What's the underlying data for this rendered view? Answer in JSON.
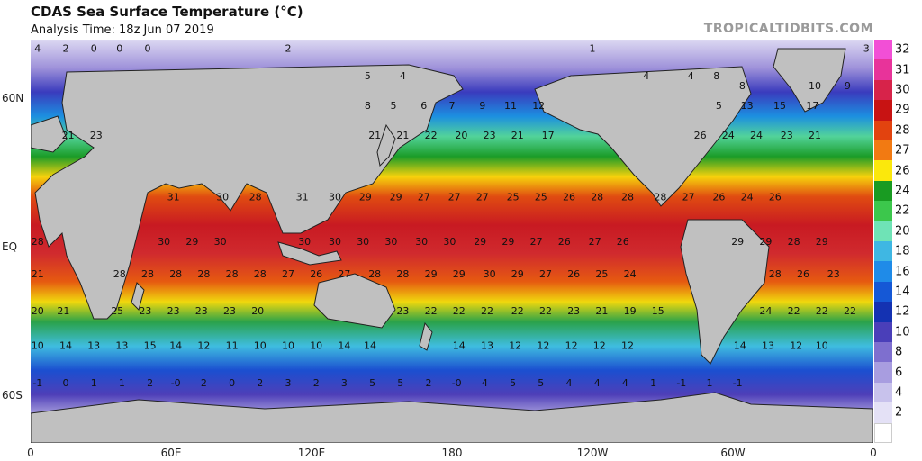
{
  "header": {
    "title": "CDAS Sea Surface Temperature (°C)",
    "subtitle": "Analysis Time: 18z Jun 07 2019",
    "credit": "TROPICALTIDBITS.COM"
  },
  "axes": {
    "lat_labels": [
      {
        "text": "60N",
        "lat": 60
      },
      {
        "text": "EQ",
        "lat": 0
      },
      {
        "text": "60S",
        "lat": -60
      }
    ],
    "lon_labels": [
      {
        "text": "0",
        "lon": 0
      },
      {
        "text": "60E",
        "lon": 60
      },
      {
        "text": "120E",
        "lon": 120
      },
      {
        "text": "180",
        "lon": 180
      },
      {
        "text": "120W",
        "lon": 240
      },
      {
        "text": "60W",
        "lon": 300
      },
      {
        "text": "0",
        "lon": 360
      }
    ]
  },
  "colorbar": {
    "labels": [
      "32",
      "31",
      "30",
      "29",
      "28",
      "27",
      "26",
      "24",
      "22",
      "20",
      "18",
      "16",
      "14",
      "12",
      "10",
      "8",
      "6",
      "4",
      "2"
    ],
    "colors": [
      "#f24fd6",
      "#e8339a",
      "#d7234a",
      "#c81313",
      "#e2430f",
      "#f27a12",
      "#fbe80c",
      "#199b22",
      "#3cc74c",
      "#6fe3b6",
      "#3fb7e3",
      "#1f8be8",
      "#1558d6",
      "#1432b2",
      "#4a3fb9",
      "#7e6fcf",
      "#a89de0",
      "#c8c2ec",
      "#e4e1f6"
    ]
  },
  "sst_labels": [
    {
      "lon": 3,
      "lat": 79,
      "v": "4"
    },
    {
      "lon": 15,
      "lat": 79,
      "v": "2"
    },
    {
      "lon": 27,
      "lat": 79,
      "v": "0"
    },
    {
      "lon": 38,
      "lat": 79,
      "v": "0"
    },
    {
      "lon": 50,
      "lat": 79,
      "v": "0"
    },
    {
      "lon": 110,
      "lat": 79,
      "v": "2"
    },
    {
      "lon": 240,
      "lat": 79,
      "v": "1"
    },
    {
      "lon": 357,
      "lat": 79,
      "v": "3"
    },
    {
      "lon": 144,
      "lat": 68,
      "v": "5"
    },
    {
      "lon": 159,
      "lat": 68,
      "v": "4"
    },
    {
      "lon": 263,
      "lat": 68,
      "v": "4"
    },
    {
      "lon": 282,
      "lat": 68,
      "v": "4"
    },
    {
      "lon": 293,
      "lat": 68,
      "v": "8"
    },
    {
      "lon": 304,
      "lat": 64,
      "v": "8"
    },
    {
      "lon": 335,
      "lat": 64,
      "v": "10"
    },
    {
      "lon": 349,
      "lat": 64,
      "v": "9"
    },
    {
      "lon": 144,
      "lat": 56,
      "v": "8"
    },
    {
      "lon": 155,
      "lat": 56,
      "v": "5"
    },
    {
      "lon": 168,
      "lat": 56,
      "v": "6"
    },
    {
      "lon": 180,
      "lat": 56,
      "v": "7"
    },
    {
      "lon": 193,
      "lat": 56,
      "v": "9"
    },
    {
      "lon": 205,
      "lat": 56,
      "v": "11"
    },
    {
      "lon": 217,
      "lat": 56,
      "v": "12"
    },
    {
      "lon": 294,
      "lat": 56,
      "v": "5"
    },
    {
      "lon": 306,
      "lat": 56,
      "v": "13"
    },
    {
      "lon": 320,
      "lat": 56,
      "v": "15"
    },
    {
      "lon": 334,
      "lat": 56,
      "v": "17"
    },
    {
      "lon": 16,
      "lat": 44,
      "v": "21"
    },
    {
      "lon": 28,
      "lat": 44,
      "v": "23"
    },
    {
      "lon": 147,
      "lat": 44,
      "v": "21"
    },
    {
      "lon": 159,
      "lat": 44,
      "v": "21"
    },
    {
      "lon": 171,
      "lat": 44,
      "v": "22"
    },
    {
      "lon": 184,
      "lat": 44,
      "v": "20"
    },
    {
      "lon": 196,
      "lat": 44,
      "v": "23"
    },
    {
      "lon": 208,
      "lat": 44,
      "v": "21"
    },
    {
      "lon": 221,
      "lat": 44,
      "v": "17"
    },
    {
      "lon": 286,
      "lat": 44,
      "v": "26"
    },
    {
      "lon": 298,
      "lat": 44,
      "v": "24"
    },
    {
      "lon": 310,
      "lat": 44,
      "v": "24"
    },
    {
      "lon": 323,
      "lat": 44,
      "v": "23"
    },
    {
      "lon": 335,
      "lat": 44,
      "v": "21"
    },
    {
      "lon": 61,
      "lat": 19,
      "v": "31"
    },
    {
      "lon": 82,
      "lat": 19,
      "v": "30"
    },
    {
      "lon": 96,
      "lat": 19,
      "v": "28"
    },
    {
      "lon": 116,
      "lat": 19,
      "v": "31"
    },
    {
      "lon": 130,
      "lat": 19,
      "v": "30"
    },
    {
      "lon": 143,
      "lat": 19,
      "v": "29"
    },
    {
      "lon": 156,
      "lat": 19,
      "v": "29"
    },
    {
      "lon": 168,
      "lat": 19,
      "v": "27"
    },
    {
      "lon": 181,
      "lat": 19,
      "v": "27"
    },
    {
      "lon": 193,
      "lat": 19,
      "v": "27"
    },
    {
      "lon": 206,
      "lat": 19,
      "v": "25"
    },
    {
      "lon": 218,
      "lat": 19,
      "v": "25"
    },
    {
      "lon": 230,
      "lat": 19,
      "v": "26"
    },
    {
      "lon": 242,
      "lat": 19,
      "v": "28"
    },
    {
      "lon": 255,
      "lat": 19,
      "v": "28"
    },
    {
      "lon": 269,
      "lat": 19,
      "v": "28"
    },
    {
      "lon": 281,
      "lat": 19,
      "v": "27"
    },
    {
      "lon": 294,
      "lat": 19,
      "v": "26"
    },
    {
      "lon": 306,
      "lat": 19,
      "v": "24"
    },
    {
      "lon": 318,
      "lat": 19,
      "v": "26"
    },
    {
      "lon": 3,
      "lat": 1,
      "v": "28"
    },
    {
      "lon": 57,
      "lat": 1,
      "v": "30"
    },
    {
      "lon": 69,
      "lat": 1,
      "v": "29"
    },
    {
      "lon": 81,
      "lat": 1,
      "v": "30"
    },
    {
      "lon": 117,
      "lat": 1,
      "v": "30"
    },
    {
      "lon": 130,
      "lat": 1,
      "v": "30"
    },
    {
      "lon": 142,
      "lat": 1,
      "v": "30"
    },
    {
      "lon": 154,
      "lat": 1,
      "v": "30"
    },
    {
      "lon": 167,
      "lat": 1,
      "v": "30"
    },
    {
      "lon": 179,
      "lat": 1,
      "v": "30"
    },
    {
      "lon": 192,
      "lat": 1,
      "v": "29"
    },
    {
      "lon": 204,
      "lat": 1,
      "v": "29"
    },
    {
      "lon": 216,
      "lat": 1,
      "v": "27"
    },
    {
      "lon": 228,
      "lat": 1,
      "v": "26"
    },
    {
      "lon": 241,
      "lat": 1,
      "v": "27"
    },
    {
      "lon": 253,
      "lat": 1,
      "v": "26"
    },
    {
      "lon": 302,
      "lat": 1,
      "v": "29"
    },
    {
      "lon": 314,
      "lat": 1,
      "v": "29"
    },
    {
      "lon": 326,
      "lat": 1,
      "v": "28"
    },
    {
      "lon": 338,
      "lat": 1,
      "v": "29"
    },
    {
      "lon": 3,
      "lat": -12,
      "v": "21"
    },
    {
      "lon": 38,
      "lat": -12,
      "v": "28"
    },
    {
      "lon": 50,
      "lat": -12,
      "v": "28"
    },
    {
      "lon": 62,
      "lat": -12,
      "v": "28"
    },
    {
      "lon": 74,
      "lat": -12,
      "v": "28"
    },
    {
      "lon": 86,
      "lat": -12,
      "v": "28"
    },
    {
      "lon": 98,
      "lat": -12,
      "v": "28"
    },
    {
      "lon": 110,
      "lat": -12,
      "v": "27"
    },
    {
      "lon": 122,
      "lat": -12,
      "v": "26"
    },
    {
      "lon": 134,
      "lat": -12,
      "v": "27"
    },
    {
      "lon": 147,
      "lat": -12,
      "v": "28"
    },
    {
      "lon": 159,
      "lat": -12,
      "v": "28"
    },
    {
      "lon": 171,
      "lat": -12,
      "v": "29"
    },
    {
      "lon": 183,
      "lat": -12,
      "v": "29"
    },
    {
      "lon": 196,
      "lat": -12,
      "v": "30"
    },
    {
      "lon": 208,
      "lat": -12,
      "v": "29"
    },
    {
      "lon": 220,
      "lat": -12,
      "v": "27"
    },
    {
      "lon": 232,
      "lat": -12,
      "v": "26"
    },
    {
      "lon": 244,
      "lat": -12,
      "v": "25"
    },
    {
      "lon": 256,
      "lat": -12,
      "v": "24"
    },
    {
      "lon": 318,
      "lat": -12,
      "v": "28"
    },
    {
      "lon": 330,
      "lat": -12,
      "v": "26"
    },
    {
      "lon": 343,
      "lat": -12,
      "v": "23"
    },
    {
      "lon": 3,
      "lat": -27,
      "v": "20"
    },
    {
      "lon": 14,
      "lat": -27,
      "v": "21"
    },
    {
      "lon": 37,
      "lat": -27,
      "v": "25"
    },
    {
      "lon": 49,
      "lat": -27,
      "v": "23"
    },
    {
      "lon": 61,
      "lat": -27,
      "v": "23"
    },
    {
      "lon": 73,
      "lat": -27,
      "v": "23"
    },
    {
      "lon": 85,
      "lat": -27,
      "v": "23"
    },
    {
      "lon": 97,
      "lat": -27,
      "v": "20"
    },
    {
      "lon": 159,
      "lat": -27,
      "v": "23"
    },
    {
      "lon": 171,
      "lat": -27,
      "v": "22"
    },
    {
      "lon": 183,
      "lat": -27,
      "v": "22"
    },
    {
      "lon": 195,
      "lat": -27,
      "v": "22"
    },
    {
      "lon": 208,
      "lat": -27,
      "v": "22"
    },
    {
      "lon": 220,
      "lat": -27,
      "v": "22"
    },
    {
      "lon": 232,
      "lat": -27,
      "v": "23"
    },
    {
      "lon": 244,
      "lat": -27,
      "v": "21"
    },
    {
      "lon": 256,
      "lat": -27,
      "v": "19"
    },
    {
      "lon": 268,
      "lat": -27,
      "v": "15"
    },
    {
      "lon": 314,
      "lat": -27,
      "v": "24"
    },
    {
      "lon": 326,
      "lat": -27,
      "v": "22"
    },
    {
      "lon": 338,
      "lat": -27,
      "v": "22"
    },
    {
      "lon": 350,
      "lat": -27,
      "v": "22"
    },
    {
      "lon": 3,
      "lat": -41,
      "v": "10"
    },
    {
      "lon": 15,
      "lat": -41,
      "v": "14"
    },
    {
      "lon": 27,
      "lat": -41,
      "v": "13"
    },
    {
      "lon": 39,
      "lat": -41,
      "v": "13"
    },
    {
      "lon": 51,
      "lat": -41,
      "v": "15"
    },
    {
      "lon": 62,
      "lat": -41,
      "v": "14"
    },
    {
      "lon": 74,
      "lat": -41,
      "v": "12"
    },
    {
      "lon": 86,
      "lat": -41,
      "v": "11"
    },
    {
      "lon": 98,
      "lat": -41,
      "v": "10"
    },
    {
      "lon": 110,
      "lat": -41,
      "v": "10"
    },
    {
      "lon": 122,
      "lat": -41,
      "v": "10"
    },
    {
      "lon": 134,
      "lat": -41,
      "v": "14"
    },
    {
      "lon": 145,
      "lat": -41,
      "v": "14"
    },
    {
      "lon": 183,
      "lat": -41,
      "v": "14"
    },
    {
      "lon": 195,
      "lat": -41,
      "v": "13"
    },
    {
      "lon": 207,
      "lat": -41,
      "v": "12"
    },
    {
      "lon": 219,
      "lat": -41,
      "v": "12"
    },
    {
      "lon": 231,
      "lat": -41,
      "v": "12"
    },
    {
      "lon": 243,
      "lat": -41,
      "v": "12"
    },
    {
      "lon": 255,
      "lat": -41,
      "v": "12"
    },
    {
      "lon": 303,
      "lat": -41,
      "v": "14"
    },
    {
      "lon": 315,
      "lat": -41,
      "v": "13"
    },
    {
      "lon": 327,
      "lat": -41,
      "v": "12"
    },
    {
      "lon": 338,
      "lat": -41,
      "v": "10"
    },
    {
      "lon": 3,
      "lat": -56,
      "v": "-1"
    },
    {
      "lon": 15,
      "lat": -56,
      "v": "0"
    },
    {
      "lon": 27,
      "lat": -56,
      "v": "1"
    },
    {
      "lon": 39,
      "lat": -56,
      "v": "1"
    },
    {
      "lon": 51,
      "lat": -56,
      "v": "2"
    },
    {
      "lon": 62,
      "lat": -56,
      "v": "-0"
    },
    {
      "lon": 74,
      "lat": -56,
      "v": "2"
    },
    {
      "lon": 86,
      "lat": -56,
      "v": "0"
    },
    {
      "lon": 98,
      "lat": -56,
      "v": "2"
    },
    {
      "lon": 110,
      "lat": -56,
      "v": "3"
    },
    {
      "lon": 122,
      "lat": -56,
      "v": "2"
    },
    {
      "lon": 134,
      "lat": -56,
      "v": "3"
    },
    {
      "lon": 146,
      "lat": -56,
      "v": "5"
    },
    {
      "lon": 158,
      "lat": -56,
      "v": "5"
    },
    {
      "lon": 170,
      "lat": -56,
      "v": "2"
    },
    {
      "lon": 182,
      "lat": -56,
      "v": "-0"
    },
    {
      "lon": 194,
      "lat": -56,
      "v": "4"
    },
    {
      "lon": 206,
      "lat": -56,
      "v": "5"
    },
    {
      "lon": 218,
      "lat": -56,
      "v": "5"
    },
    {
      "lon": 230,
      "lat": -56,
      "v": "4"
    },
    {
      "lon": 242,
      "lat": -56,
      "v": "4"
    },
    {
      "lon": 254,
      "lat": -56,
      "v": "4"
    },
    {
      "lon": 266,
      "lat": -56,
      "v": "1"
    },
    {
      "lon": 278,
      "lat": -56,
      "v": "-1"
    },
    {
      "lon": 290,
      "lat": -56,
      "v": "1"
    },
    {
      "lon": 302,
      "lat": -56,
      "v": "-1"
    }
  ]
}
